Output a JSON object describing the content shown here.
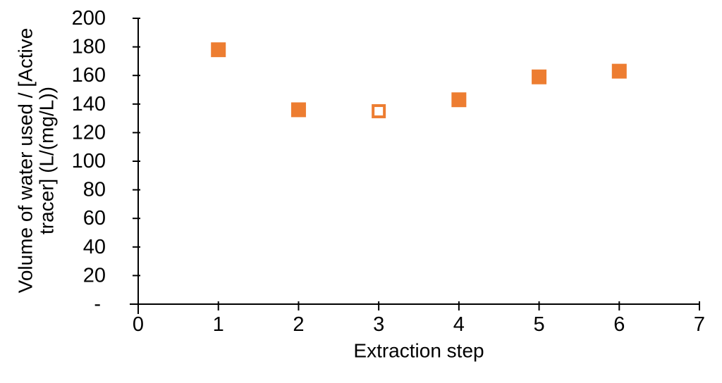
{
  "chart_data": {
    "type": "scatter",
    "title": "",
    "xlabel": "Extraction step",
    "ylabel": "Volume of water used / [Active tracer] (L/(mg/L))",
    "ylabel_lines": [
      "Volume of water used / [Active",
      "tracer] (L/(mg/L))"
    ],
    "marker_shape": "square",
    "points": [
      {
        "x": 1,
        "y": 178,
        "style": "filled"
      },
      {
        "x": 2,
        "y": 136,
        "style": "filled"
      },
      {
        "x": 3,
        "y": 135,
        "style": "open"
      },
      {
        "x": 4,
        "y": 143,
        "style": "filled"
      },
      {
        "x": 5,
        "y": 159,
        "style": "filled"
      },
      {
        "x": 6,
        "y": 163,
        "style": "filled"
      }
    ],
    "xlim": [
      0,
      7
    ],
    "ylim": [
      0,
      200
    ],
    "x_tick_values": [
      0,
      1,
      2,
      3,
      4,
      5,
      6,
      7
    ],
    "x_tick_labels": [
      "0",
      "1",
      "2",
      "3",
      "4",
      "5",
      "6",
      "7"
    ],
    "y_tick_values": [
      0,
      20,
      40,
      60,
      80,
      100,
      120,
      140,
      160,
      180,
      200
    ],
    "y_tick_labels": [
      "-",
      "20",
      "40",
      "60",
      "80",
      "100",
      "120",
      "140",
      "160",
      "180",
      "200"
    ],
    "grid": false,
    "legend": "none",
    "marker_color": "#ED7D31",
    "axis_color": "#000000",
    "text_color": "#000000",
    "background": "#FFFFFF"
  }
}
